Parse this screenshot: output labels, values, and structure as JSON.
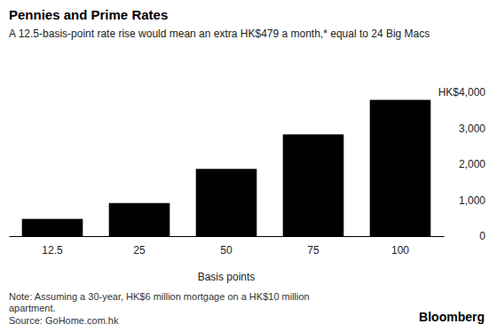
{
  "chart_data": {
    "type": "bar",
    "title": "Pennies and Prime Rates",
    "subtitle": "A 12.5-basis-point rate rise would mean an extra HK$479 a month,* equal to 24 Big Macs",
    "categories": [
      "12.5",
      "25",
      "50",
      "75",
      "100"
    ],
    "values": [
      479,
      920,
      1870,
      2830,
      3790
    ],
    "color": "#000000",
    "x_label": "Basis points",
    "ylim": [
      0,
      4000
    ],
    "yticks": [
      0,
      {
        "value": 1000,
        "label": "1,000"
      },
      {
        "value": 2000,
        "label": "2,000"
      },
      {
        "value": 3000,
        "label": "3,000"
      },
      {
        "value": 4000,
        "label": "HK$4,000"
      }
    ],
    "grid": false,
    "note": "Note: Assuming a 30-year, HK$6 million mortgage on a HK$10 million apartment.",
    "source": "Source: GoHome.com.hk",
    "credit": "Bloomberg"
  }
}
